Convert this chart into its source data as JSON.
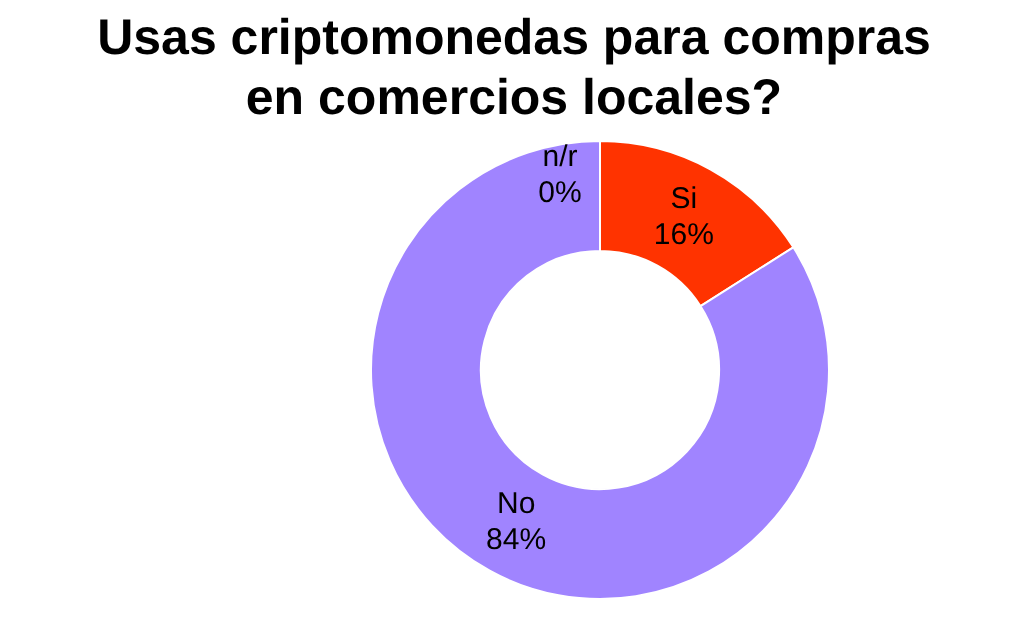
{
  "chart_data": {
    "type": "donut",
    "title": "Usas criptomonedas para compras en comercios locales?",
    "categories": [
      "n/r",
      "Si",
      "No"
    ],
    "values": [
      0,
      16,
      84
    ],
    "value_labels": [
      "0%",
      "16%",
      "84%"
    ],
    "colors": [
      "#ffcc00",
      "#ff3300",
      "#a084ff"
    ],
    "legend": false
  }
}
